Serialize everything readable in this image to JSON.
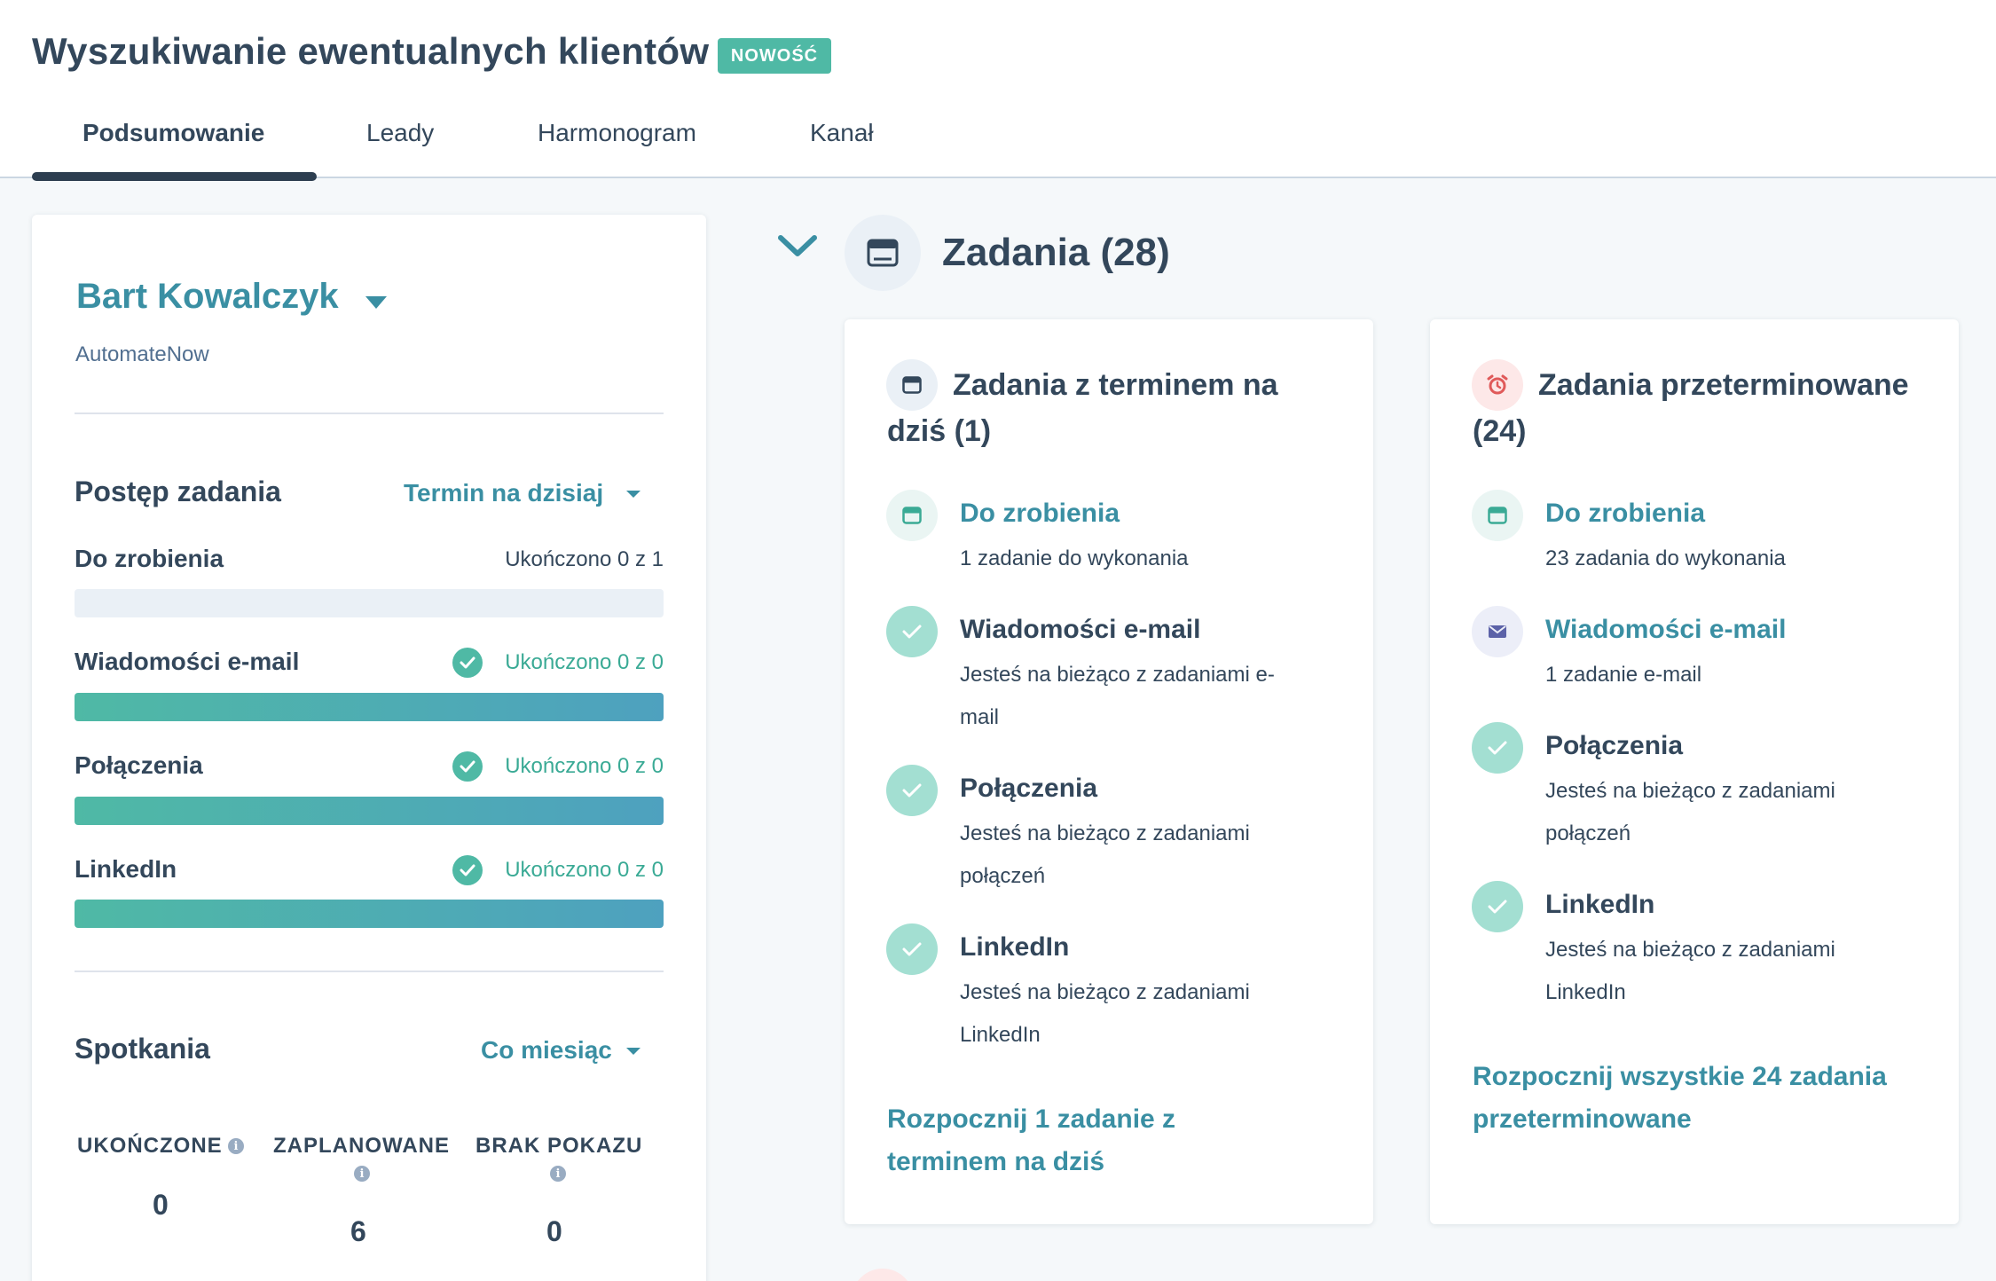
{
  "page": {
    "title": "Wyszukiwanie ewentualnych klientów",
    "badge": "NOWOŚĆ"
  },
  "tabs": [
    {
      "label": "Podsumowanie",
      "active": true
    },
    {
      "label": "Leady",
      "active": false
    },
    {
      "label": "Harmonogram",
      "active": false
    },
    {
      "label": "Kanał",
      "active": false
    }
  ],
  "owner": {
    "name": "Bart Kowalczyk",
    "company": "AutomateNow"
  },
  "task_progress": {
    "title": "Postęp zadania",
    "filter": "Termin na dzisiaj",
    "rows": [
      {
        "label": "Do zrobienia",
        "status": "Ukończono 0 z 1",
        "complete": false,
        "progress": 0
      },
      {
        "label": "Wiadomości e-mail",
        "status": "Ukończono 0 z 0",
        "complete": true,
        "progress": 1
      },
      {
        "label": "Połączenia",
        "status": "Ukończono 0 z 0",
        "complete": true,
        "progress": 1
      },
      {
        "label": "LinkedIn",
        "status": "Ukończono 0 z 0",
        "complete": true,
        "progress": 1
      }
    ]
  },
  "meetings": {
    "title": "Spotkania",
    "filter": "Co miesiąc",
    "stats": [
      {
        "label": "UKOŃCZONE",
        "value": "0"
      },
      {
        "label": "ZAPLANOWANE",
        "value": "6"
      },
      {
        "label": "BRAK POKAZU",
        "value": "0"
      }
    ]
  },
  "tasks": {
    "heading": "Zadania (28)",
    "due_today": {
      "title_line1": "Zadania z terminem na",
      "title_line2": "dziś (1)",
      "items": [
        {
          "title": "Do zrobienia",
          "desc_line1": "1 zadanie do wykonania",
          "desc_line2": ""
        },
        {
          "title": "Wiadomości e-mail",
          "desc_line1": "Jesteś na bieżąco z zadaniami e-",
          "desc_line2": "mail"
        },
        {
          "title": "Połączenia",
          "desc_line1": "Jesteś na bieżąco z zadaniami",
          "desc_line2": "połączeń"
        },
        {
          "title": "LinkedIn",
          "desc_line1": "Jesteś na bieżąco z zadaniami",
          "desc_line2": "LinkedIn"
        }
      ],
      "cta_line1": "Rozpocznij 1 zadanie z",
      "cta_line2": "terminem na dziś"
    },
    "overdue": {
      "title_line1": "Zadania przeterminowane",
      "title_line2": "(24)",
      "items": [
        {
          "title": "Do zrobienia",
          "desc_line1": "23 zadania do wykonania",
          "desc_line2": ""
        },
        {
          "title": "Wiadomości e-mail",
          "desc_line1": "1 zadanie e-mail",
          "desc_line2": ""
        },
        {
          "title": "Połączenia",
          "desc_line1": "Jesteś na bieżąco z zadaniami",
          "desc_line2": "połączeń"
        },
        {
          "title": "LinkedIn",
          "desc_line1": "Jesteś na bieżąco z zadaniami",
          "desc_line2": "LinkedIn"
        }
      ],
      "cta_line1": "Rozpocznij wszystkie 24 zadania",
      "cta_line2": "przeterminowane"
    }
  },
  "icons": {
    "task": "calendar-task-icon",
    "overdue": "alarm-clock-icon",
    "email": "envelope-icon",
    "check": "checkmark-icon",
    "collapse": "chevron-down-icon"
  },
  "colors": {
    "accent": "#3a8fa3",
    "success": "#4fb9a5",
    "text": "#33475b",
    "alert": "#e05a5a"
  }
}
